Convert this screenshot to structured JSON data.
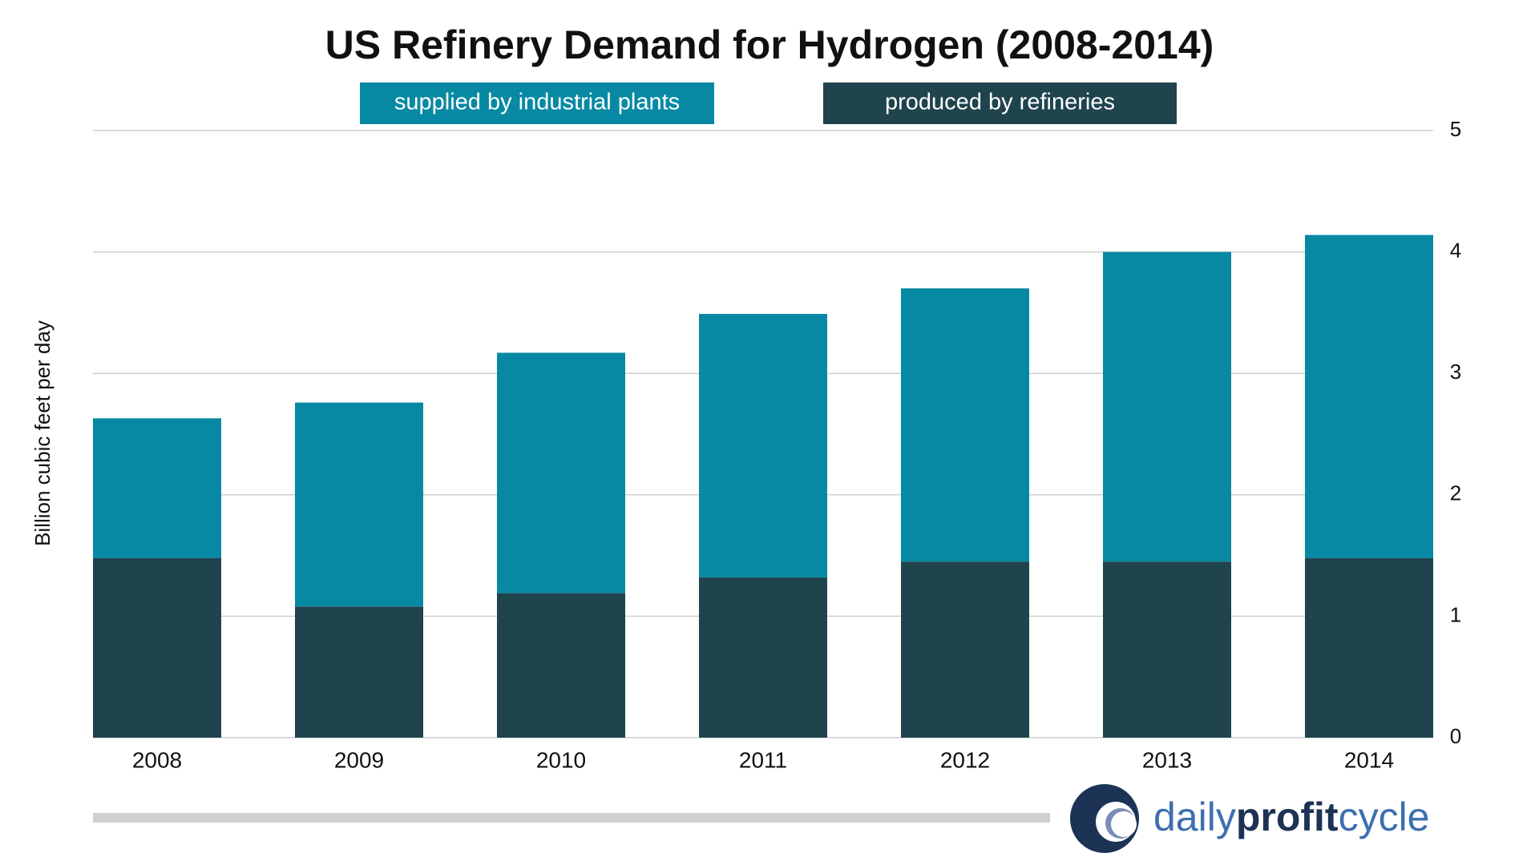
{
  "chart_data": {
    "type": "stacked_bar",
    "title": "US Refinery Demand for Hydrogen (2008-2014)",
    "y_label": "Billion cubic feet per day",
    "categories": [
      "2008",
      "2009",
      "2010",
      "2011",
      "2012",
      "2013",
      "2014"
    ],
    "series": [
      {
        "name": "produced by refineries",
        "color": "#1f444e",
        "values": [
          1.48,
          1.08,
          1.19,
          1.32,
          1.45,
          1.45,
          1.48
        ]
      },
      {
        "name": "supplied by industrial plants",
        "color": "#0889a3",
        "values": [
          1.15,
          1.68,
          1.98,
          2.17,
          2.25,
          2.55,
          2.66
        ]
      }
    ],
    "ylim": [
      0,
      5
    ],
    "yticks": [
      0,
      1,
      2,
      3,
      4,
      5
    ],
    "grid": true,
    "y_axis_side": "right",
    "logo": {
      "parts": [
        "daily",
        "profit",
        "cycle"
      ]
    }
  }
}
